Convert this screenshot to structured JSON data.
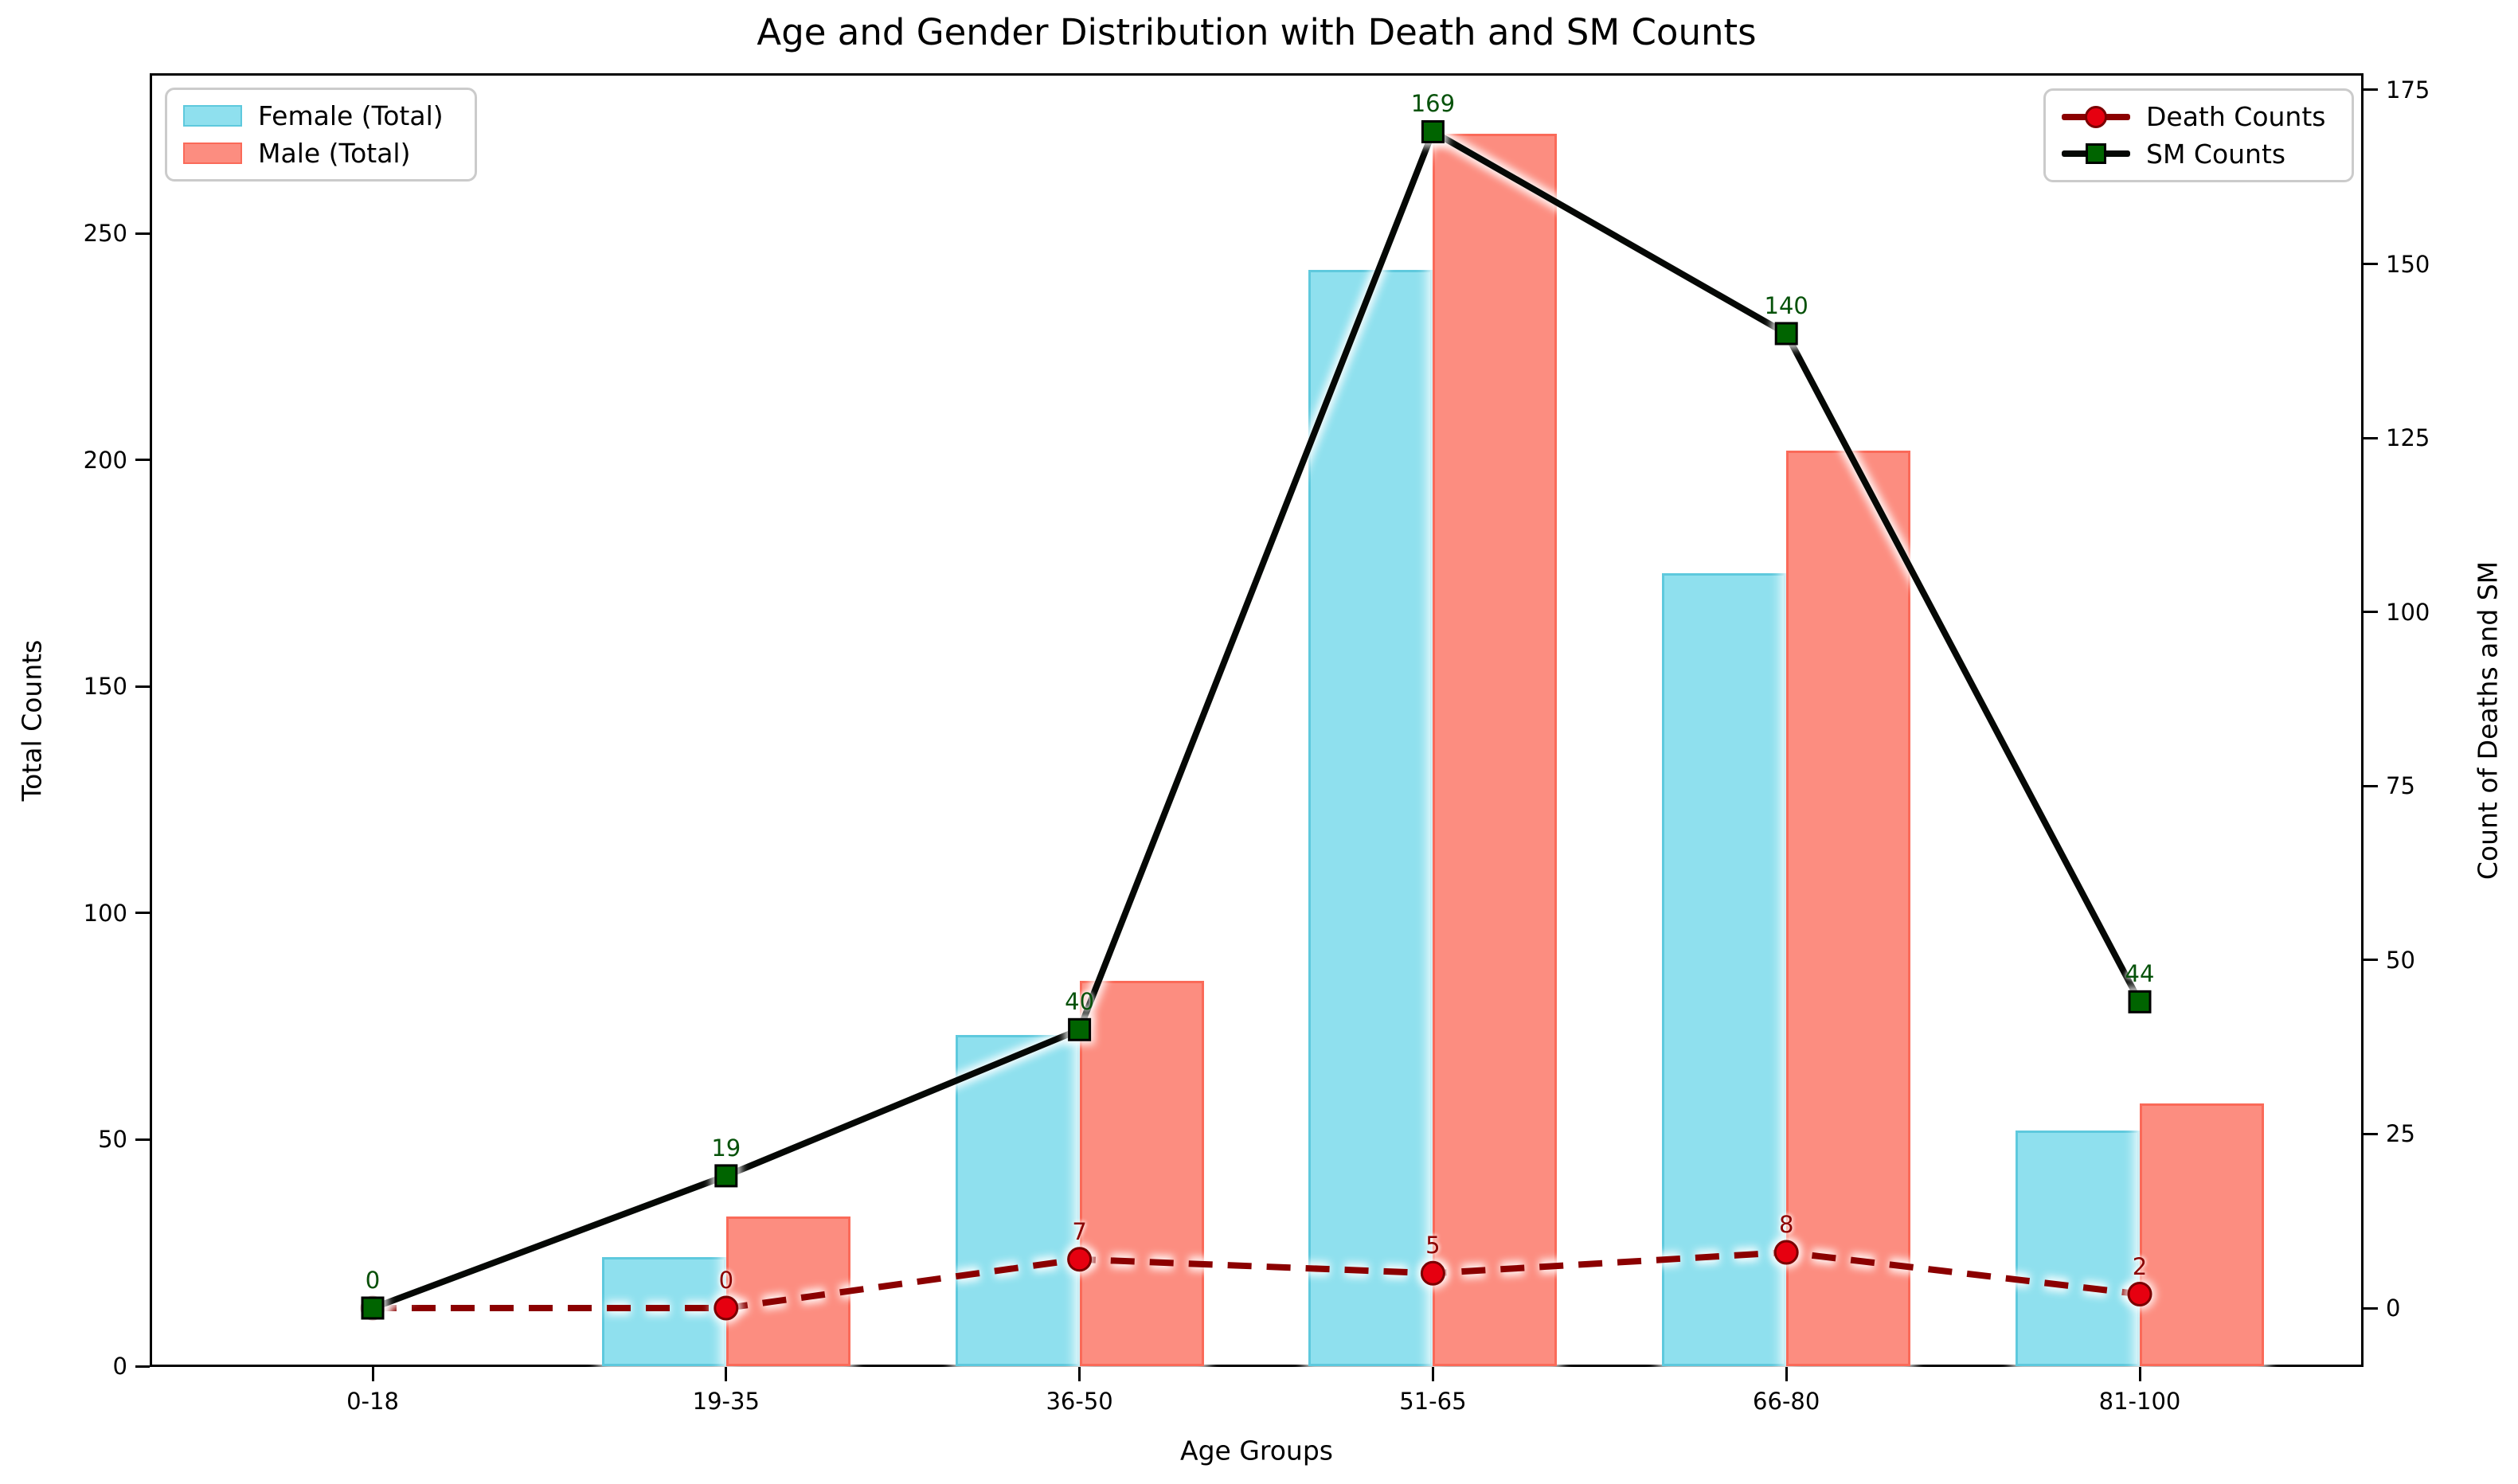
{
  "chart_data": {
    "type": "bar",
    "title": "Age and Gender Distribution with Death and SM Counts",
    "xlabel": "Age Groups",
    "ylabel_left": "Total Counts",
    "ylabel_right": "Count of Deaths and SM",
    "categories": [
      "0-18",
      "19-35",
      "36-50",
      "51-65",
      "66-80",
      "81-100"
    ],
    "series": [
      {
        "name": "Female (Total)",
        "type": "bar",
        "axis": "left",
        "color": "#8fe0ee",
        "values": [
          0,
          24,
          73,
          242,
          175,
          52
        ]
      },
      {
        "name": "Male (Total)",
        "type": "bar",
        "axis": "left",
        "color": "#fc8d80",
        "values": [
          0,
          33,
          85,
          272,
          202,
          58
        ]
      },
      {
        "name": "Death Counts",
        "type": "line",
        "axis": "right",
        "color": "#8b0000",
        "marker": "circle",
        "marker_color": "#e60010",
        "dashed": true,
        "values": [
          0,
          0,
          7,
          5,
          8,
          2
        ]
      },
      {
        "name": "SM Counts",
        "type": "line",
        "axis": "right",
        "color": "#050805",
        "marker": "square",
        "marker_color": "#006400",
        "dashed": false,
        "values": [
          0,
          19,
          40,
          169,
          140,
          44
        ]
      }
    ],
    "point_labels": {
      "death": [
        "0",
        "0",
        "7",
        "5",
        "8",
        "2"
      ],
      "sm": [
        "0",
        "19",
        "40",
        "169",
        "140",
        "44"
      ]
    },
    "yticks_left": [
      "0",
      "50",
      "100",
      "150",
      "200",
      "250"
    ],
    "ytick_values_left": [
      0,
      50,
      100,
      150,
      200,
      250
    ],
    "ylim_left": [
      0,
      285
    ],
    "yticks_right": [
      "0",
      "25",
      "50",
      "75",
      "100",
      "125",
      "150",
      "175"
    ],
    "ytick_values_right": [
      0,
      25,
      50,
      75,
      100,
      125,
      150,
      175
    ],
    "ylim_right": [
      -8.5,
      177.5
    ],
    "legend_left_position": "upper left",
    "legend_right_position": "upper right",
    "grid": false
  }
}
